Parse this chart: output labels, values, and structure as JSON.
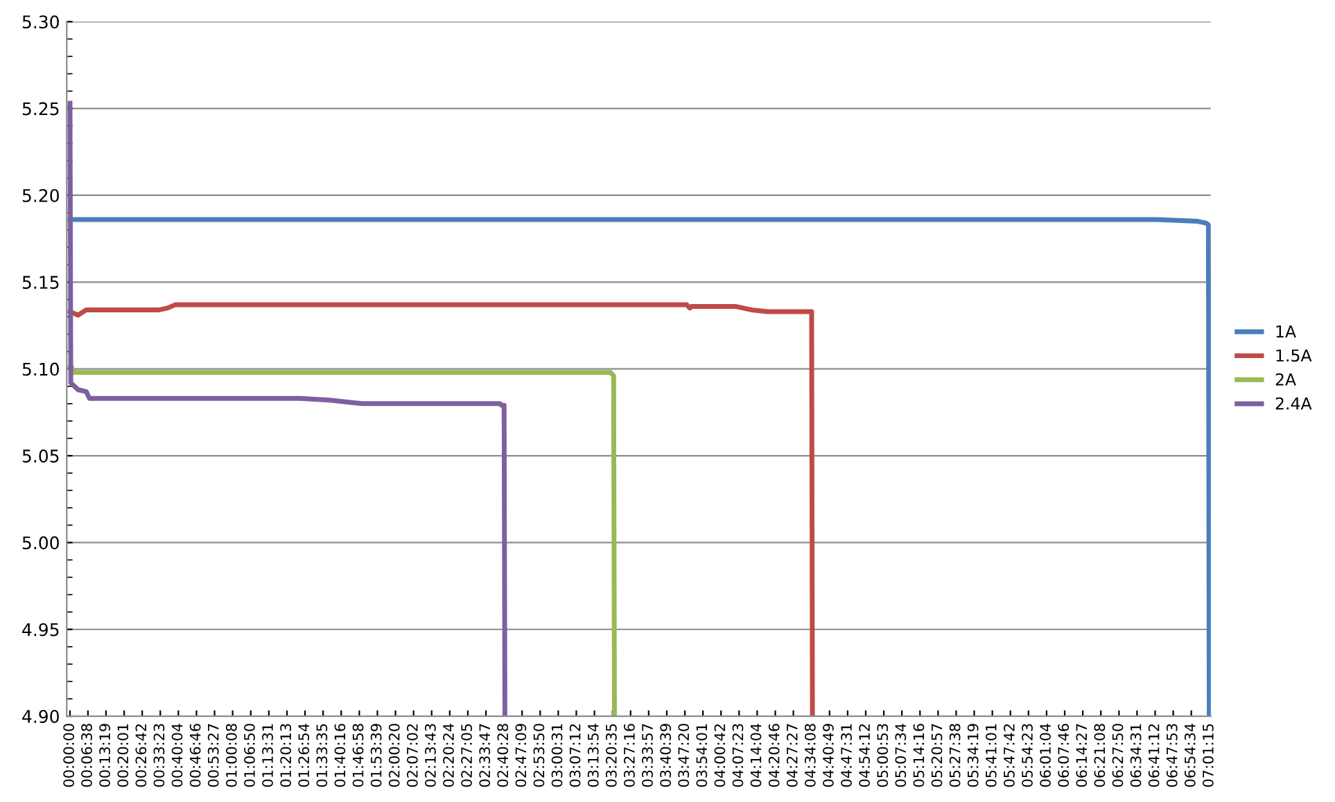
{
  "chart_data": {
    "type": "line",
    "xlim": [
      -0.02,
      7.03
    ],
    "xticks": [
      {
        "value": 0,
        "label": "00:00:00"
      },
      {
        "value": 0.1106,
        "label": "00:06:38"
      },
      {
        "value": 0.2219,
        "label": "00:13:19"
      },
      {
        "value": 0.3336,
        "label": "00:20:01"
      },
      {
        "value": 0.445,
        "label": "00:26:42"
      },
      {
        "value": 0.5564,
        "label": "00:33:23"
      },
      {
        "value": 0.6678,
        "label": "00:40:04"
      },
      {
        "value": 0.7794,
        "label": "00:46:46"
      },
      {
        "value": 0.8908,
        "label": "00:53:27"
      },
      {
        "value": 1.0022,
        "label": "01:00:08"
      },
      {
        "value": 1.1139,
        "label": "01:06:50"
      },
      {
        "value": 1.2253,
        "label": "01:13:31"
      },
      {
        "value": 1.3369,
        "label": "01:20:13"
      },
      {
        "value": 1.4483,
        "label": "01:26:54"
      },
      {
        "value": 1.5597,
        "label": "01:33:35"
      },
      {
        "value": 1.6711,
        "label": "01:40:16"
      },
      {
        "value": 1.7828,
        "label": "01:46:58"
      },
      {
        "value": 1.8942,
        "label": "01:53:39"
      },
      {
        "value": 2.0056,
        "label": "02:00:20"
      },
      {
        "value": 2.1172,
        "label": "02:07:02"
      },
      {
        "value": 2.2286,
        "label": "02:13:43"
      },
      {
        "value": 2.34,
        "label": "02:20:24"
      },
      {
        "value": 2.4514,
        "label": "02:27:05"
      },
      {
        "value": 2.5631,
        "label": "02:33:47"
      },
      {
        "value": 2.6744,
        "label": "02:40:28"
      },
      {
        "value": 2.7858,
        "label": "02:47:09"
      },
      {
        "value": 2.8972,
        "label": "02:53:50"
      },
      {
        "value": 3.0086,
        "label": "03:00:31"
      },
      {
        "value": 3.12,
        "label": "03:07:12"
      },
      {
        "value": 3.2317,
        "label": "03:13:54"
      },
      {
        "value": 3.3431,
        "label": "03:20:35"
      },
      {
        "value": 3.4544,
        "label": "03:27:16"
      },
      {
        "value": 3.5658,
        "label": "03:33:57"
      },
      {
        "value": 3.6775,
        "label": "03:40:39"
      },
      {
        "value": 3.7889,
        "label": "03:47:20"
      },
      {
        "value": 3.9003,
        "label": "03:54:01"
      },
      {
        "value": 4.0117,
        "label": "04:00:42"
      },
      {
        "value": 4.1231,
        "label": "04:07:23"
      },
      {
        "value": 4.2344,
        "label": "04:14:04"
      },
      {
        "value": 4.3461,
        "label": "04:20:46"
      },
      {
        "value": 4.4575,
        "label": "04:27:27"
      },
      {
        "value": 4.5689,
        "label": "04:34:08"
      },
      {
        "value": 4.6803,
        "label": "04:40:49"
      },
      {
        "value": 4.7919,
        "label": "04:47:31"
      },
      {
        "value": 4.9033,
        "label": "04:54:12"
      },
      {
        "value": 5.0147,
        "label": "05:00:53"
      },
      {
        "value": 5.1261,
        "label": "05:07:34"
      },
      {
        "value": 5.2378,
        "label": "05:14:16"
      },
      {
        "value": 5.3492,
        "label": "05:20:57"
      },
      {
        "value": 5.4606,
        "label": "05:27:38"
      },
      {
        "value": 5.5719,
        "label": "05:34:19"
      },
      {
        "value": 5.6836,
        "label": "05:41:01"
      },
      {
        "value": 5.795,
        "label": "05:47:42"
      },
      {
        "value": 5.9064,
        "label": "05:54:23"
      },
      {
        "value": 6.0178,
        "label": "06:01:04"
      },
      {
        "value": 6.1294,
        "label": "06:07:46"
      },
      {
        "value": 6.2408,
        "label": "06:14:27"
      },
      {
        "value": 6.3522,
        "label": "06:21:08"
      },
      {
        "value": 6.4639,
        "label": "06:27:50"
      },
      {
        "value": 6.5753,
        "label": "06:34:31"
      },
      {
        "value": 6.6867,
        "label": "06:41:12"
      },
      {
        "value": 6.7981,
        "label": "06:47:53"
      },
      {
        "value": 6.9094,
        "label": "06:54:34"
      },
      {
        "value": 7.0208,
        "label": "07:01:15"
      }
    ],
    "ylim": [
      4.9,
      5.3
    ],
    "yticks": [
      {
        "value": 4.9,
        "label": "4.90"
      },
      {
        "value": 4.95,
        "label": "4.95"
      },
      {
        "value": 5.0,
        "label": "5.00"
      },
      {
        "value": 5.05,
        "label": "5.05"
      },
      {
        "value": 5.1,
        "label": "5.10"
      },
      {
        "value": 5.15,
        "label": "5.15"
      },
      {
        "value": 5.2,
        "label": "5.20"
      },
      {
        "value": 5.25,
        "label": "5.25"
      },
      {
        "value": 5.3,
        "label": "5.30"
      }
    ],
    "grid": "y",
    "legend": "right",
    "marker": "none",
    "line_style": "solid",
    "series": [
      {
        "name": "1A",
        "color": "#4a7ebb",
        "x": [
          0,
          6.7,
          6.95,
          7.0,
          7.015,
          7.02
        ],
        "values": [
          5.186,
          5.186,
          5.185,
          5.184,
          5.183,
          4.9
        ]
      },
      {
        "name": "1.5A",
        "color": "#be4b48",
        "x": [
          0,
          0.05,
          0.1,
          0.55,
          0.6,
          0.65,
          3.8,
          3.82,
          3.83,
          4.1,
          4.2,
          4.3,
          4.57,
          4.575
        ],
        "values": [
          5.133,
          5.131,
          5.134,
          5.134,
          5.135,
          5.137,
          5.137,
          5.135,
          5.136,
          5.136,
          5.134,
          5.133,
          5.133,
          4.9
        ]
      },
      {
        "name": "2A",
        "color": "#98b954",
        "x": [
          0,
          0.01,
          0.02,
          3.33,
          3.35,
          3.355
        ],
        "values": [
          5.101,
          5.101,
          5.098,
          5.098,
          5.096,
          4.9
        ]
      },
      {
        "name": "2.4A",
        "color": "#7d60a0",
        "x": [
          0,
          0.005,
          0.05,
          0.1,
          0.12,
          1.42,
          1.6,
          1.8,
          2.65,
          2.66,
          2.675,
          2.68
        ],
        "values": [
          5.253,
          5.092,
          5.088,
          5.087,
          5.083,
          5.083,
          5.082,
          5.08,
          5.08,
          5.079,
          5.079,
          4.9
        ]
      }
    ]
  }
}
